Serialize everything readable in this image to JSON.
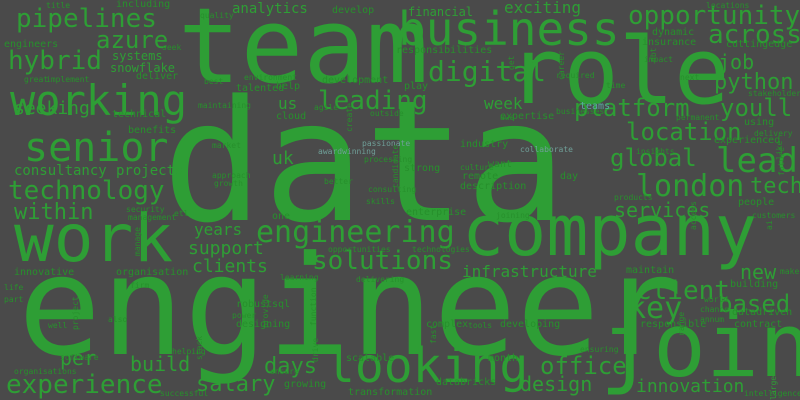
{
  "background": "#4a4a4a",
  "palette": {
    "green": "#2e9e35",
    "teal": "#5aa9a2"
  },
  "words": {
    "data": "data",
    "engineer": "engineer",
    "team": "team",
    "role": "role",
    "company": "company",
    "work": "work",
    "join": "join",
    "business": "business",
    "looking": "looking",
    "working": "working",
    "senior": "senior",
    "engineering": "engineering",
    "experience": "experience",
    "technology": "technology",
    "london": "london",
    "solutions": "solutions",
    "leading": "leading",
    "opportunity": "opportunity",
    "pipelines": "pipelines",
    "hybrid": "hybrid",
    "digital": "digital",
    "platform": "platform",
    "location": "location",
    "lead": "lead",
    "client": "client",
    "key": "key",
    "based": "based",
    "across": "across",
    "azure": "azure",
    "python": "python",
    "youll": "youll",
    "global": "global",
    "services": "services",
    "tech": "tech",
    "within": "within",
    "infrastructure": "infrastructure",
    "days": "days",
    "office": "office",
    "design": "design",
    "salary": "salary",
    "build": "build",
    "per": "per",
    "new": "new",
    "innovation": "innovation",
    "job": "job",
    "seeking": "seeking",
    "support": "support",
    "clients": "clients",
    "years": "years",
    "week": "week",
    "uk": "uk",
    "us": "us",
    "projects": "projects",
    "consultancy": "consultancy",
    "analytics": "analytics",
    "exciting": "exciting",
    "including": "including",
    "develop": "develop",
    "financial": "financial",
    "systems": "systems",
    "snowflake": "snowflake",
    "engineers": "engineers",
    "responsibilities": "responsibilities",
    "development": "development",
    "help": "help",
    "cloud": "cloud",
    "using": "using",
    "experienced": "experienced",
    "benefits": "benefits",
    "technical": "technical",
    "industry": "industry",
    "want": "want",
    "remote": "remote",
    "description": "description",
    "day": "day",
    "strong": "strong",
    "teams": "teams",
    "people": "people",
    "building": "building",
    "maintain": "maintain",
    "innovative": "innovative",
    "organisation": "organisation",
    "sql": "sql",
    "robust": "robust",
    "designing": "designing",
    "complex": "complex",
    "developing": "developing",
    "growing": "growing",
    "scalable": "scalable",
    "transformation": "transformation",
    "databricks": "databricks",
    "responsible": "responsible",
    "contract": "contract",
    "month": "month",
    "datadriven": "datadriven",
    "cuttingedge": "cuttingedge",
    "dynamic": "dynamic",
    "insurance": "insurance",
    "deliver": "deliver",
    "talented": "talented",
    "agile": "agile",
    "environment": "environment",
    "best": "best",
    "expertise": "expertise",
    "play": "play",
    "enterprise": "enterprise",
    "skills": "skills",
    "etl": "etl",
    "one": "one",
    "better": "better",
    "insights": "insights",
    "quality": "quality",
    "delivery": "delivery",
    "customers": "customers",
    "ensure": "ensure",
    "opportunities": "opportunities",
    "technologies": "technologies",
    "software": "software",
    "organisations": "organisations",
    "helping": "helping",
    "successful": "successful",
    "get": "get",
    "collaborate": "collaborate",
    "passionate": "passionate",
    "awardwinning": "awardwinning",
    "future": "future",
    "like": "like",
    "security": "security",
    "management": "management",
    "approach": "approach",
    "growth": "growth",
    "market": "market",
    "culture": "culture",
    "ensuring": "ensuring",
    "power": "power",
    "processing": "processing",
    "career": "career",
    "range": "range",
    "life": "life",
    "next": "next",
    "time": "time",
    "create": "create",
    "impact": "impact",
    "permanent": "permanent",
    "annum": "annum",
    "learning": "learning",
    "intelligence": "intelligence",
    "fast": "fast",
    "large": "large",
    "make": "make",
    "part": "part",
    "provide": "provide",
    "candidate": "candidate",
    "aws": "aws",
    "businesses": "businesses",
    "delivering": "delivering",
    "required": "required",
    "project": "project",
    "drive": "drive",
    "outside": "outside",
    "function": "function",
    "manage": "manage",
    "locations": "locations",
    "great": "great",
    "implement": "implement",
    "ai": "ai",
    "dbt": "dbt",
    "title": "title",
    "join2": "joining",
    "stack": "stack",
    "access": "access",
    "well": "well",
    "also": "also",
    "firm": "firm",
    "seek": "seek",
    "chance": "chance",
    "world": "world",
    "stakeholders": "stakeholders",
    "consulting": "consulting",
    "maintaining": "maintaining",
    "tools": "tools",
    "products": "products"
  }
}
